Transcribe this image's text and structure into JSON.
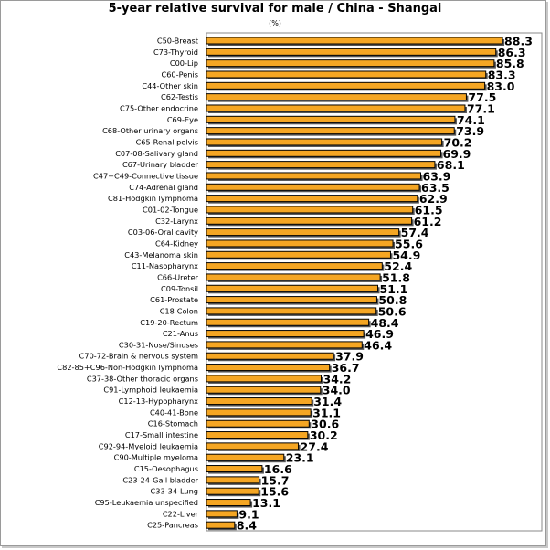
{
  "title": "5-year relative survival for male / China - Shangai",
  "unit": "(%)",
  "colors": {
    "bar": "#f5a623",
    "bar_edge": "#000000",
    "shadow": "#555555",
    "plot_border": "#888888"
  },
  "chart_data": {
    "type": "bar",
    "orientation": "horizontal",
    "title": "5-year relative survival for male / China - Shangai",
    "unit": "(%)",
    "xlim": [
      0,
      100
    ],
    "grid": false,
    "categories": [
      "C50-Breast",
      "C73-Thyroid",
      "C00-Lip",
      "C60-Penis",
      "C44-Other skin",
      "C62-Testis",
      "C75-Other endocrine",
      "C69-Eye",
      "C68-Other urinary organs",
      "C65-Renal pelvis",
      "C07-08-Salivary gland",
      "C67-Urinary bladder",
      "C47+C49-Connective tissue",
      "C74-Adrenal gland",
      "C81-Hodgkin lymphoma",
      "C01-02-Tongue",
      "C32-Larynx",
      "C03-06-Oral cavity",
      "C64-Kidney",
      "C43-Melanoma skin",
      "C11-Nasopharynx",
      "C66-Ureter",
      "C09-Tonsil",
      "C61-Prostate",
      "C18-Colon",
      "C19-20-Rectum",
      "C21-Anus",
      "C30-31-Nose/Sinuses",
      "C70-72-Brain & nervous system",
      "C82-85+C96-Non-Hodgkin lymphoma",
      "C37-38-Other thoracic organs",
      "C91-Lymphoid leukaemia",
      "C12-13-Hypopharynx",
      "C40-41-Bone",
      "C16-Stomach",
      "C17-Small intestine",
      "C92-94-Myeloid leukaemia",
      "C90-Multiple myeloma",
      "C15-Oesophagus",
      "C23-24-Gall bladder",
      "C33-34-Lung",
      "C95-Leukaemia unspecified",
      "C22-Liver",
      "C25-Pancreas"
    ],
    "values": [
      88.3,
      86.3,
      85.8,
      83.3,
      83.0,
      77.5,
      77.1,
      74.1,
      73.9,
      70.2,
      69.9,
      68.1,
      63.9,
      63.5,
      62.9,
      61.5,
      61.2,
      57.4,
      55.6,
      54.9,
      52.4,
      51.8,
      51.1,
      50.8,
      50.6,
      48.4,
      46.9,
      46.4,
      37.9,
      36.7,
      34.2,
      34.0,
      31.4,
      31.1,
      30.6,
      30.2,
      27.4,
      23.1,
      16.6,
      15.7,
      15.6,
      13.1,
      9.1,
      8.4
    ],
    "value_labels": [
      "88.3",
      "86.3",
      "85.8",
      "83.3",
      "83.0",
      "77.5",
      "77.1",
      "74.1",
      "73.9",
      "70.2",
      "69.9",
      "68.1",
      "63.9",
      "63.5",
      "62.9",
      "61.5",
      "61.2",
      "57.4",
      "55.6",
      "54.9",
      "52.4",
      "51.8",
      "51.1",
      "50.8",
      "50.6",
      "48.4",
      "46.9",
      "46.4",
      "37.9",
      "36.7",
      "34.2",
      "34.0",
      "31.4",
      "31.1",
      "30.6",
      "30.2",
      "27.4",
      "23.1",
      "16.6",
      "15.7",
      "15.6",
      "13.1",
      "9.1",
      "8.4"
    ]
  }
}
